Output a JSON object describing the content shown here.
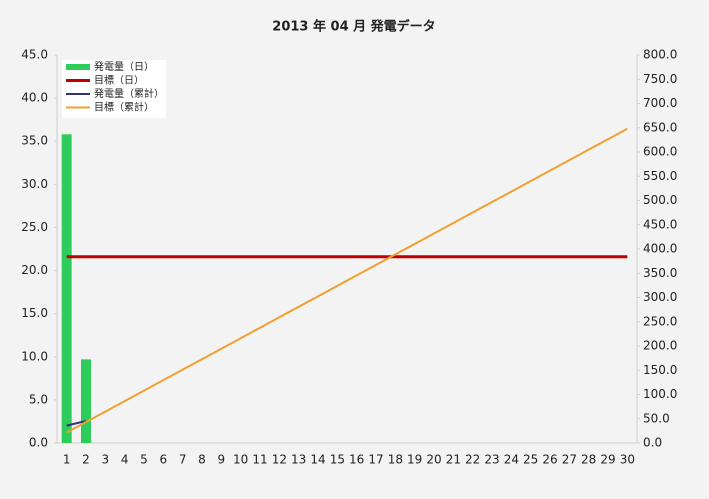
{
  "chart_data": {
    "type": "bar",
    "title": "2013 年 04 月 発電データ",
    "categories": [
      "1",
      "2",
      "3",
      "4",
      "5",
      "6",
      "7",
      "8",
      "9",
      "10",
      "11",
      "12",
      "13",
      "14",
      "15",
      "16",
      "17",
      "18",
      "19",
      "20",
      "21",
      "22",
      "23",
      "24",
      "25",
      "26",
      "27",
      "28",
      "29",
      "30"
    ],
    "series": [
      {
        "name": "発電量（日）",
        "type": "bar",
        "color": "#2ecc5a",
        "values": [
          35.8,
          9.7,
          null,
          null,
          null,
          null,
          null,
          null,
          null,
          null,
          null,
          null,
          null,
          null,
          null,
          null,
          null,
          null,
          null,
          null,
          null,
          null,
          null,
          null,
          null,
          null,
          null,
          null,
          null,
          null
        ]
      },
      {
        "name": "目標（日）",
        "type": "line",
        "color": "#c00000",
        "width": 3,
        "values": [
          21.6,
          21.6,
          21.6,
          21.6,
          21.6,
          21.6,
          21.6,
          21.6,
          21.6,
          21.6,
          21.6,
          21.6,
          21.6,
          21.6,
          21.6,
          21.6,
          21.6,
          21.6,
          21.6,
          21.6,
          21.6,
          21.6,
          21.6,
          21.6,
          21.6,
          21.6,
          21.6,
          21.6,
          21.6,
          21.6
        ]
      },
      {
        "name": "発電量（累計）",
        "type": "line",
        "axis": "y2",
        "color": "#33337a",
        "width": 2,
        "values": [
          35.8,
          45.5,
          null,
          null,
          null,
          null,
          null,
          null,
          null,
          null,
          null,
          null,
          null,
          null,
          null,
          null,
          null,
          null,
          null,
          null,
          null,
          null,
          null,
          null,
          null,
          null,
          null,
          null,
          null,
          null
        ]
      },
      {
        "name": "目標（累計）",
        "type": "line",
        "axis": "y2",
        "color": "#f0a030",
        "width": 2,
        "values": [
          21.6,
          43.2,
          64.8,
          86.4,
          108,
          129.6,
          151.2,
          172.8,
          194.4,
          216,
          237.6,
          259.2,
          280.8,
          302.4,
          324,
          345.6,
          367.2,
          388.8,
          410.4,
          432,
          453.6,
          475.2,
          496.8,
          518.4,
          540,
          561.6,
          583.2,
          604.8,
          626.4,
          648
        ]
      }
    ],
    "ylim": [
      0,
      45
    ],
    "yticks": [
      {
        "value": 0,
        "label": "0.0"
      },
      {
        "value": 5,
        "label": "5.0"
      },
      {
        "value": 10,
        "label": "10.0"
      },
      {
        "value": 15,
        "label": "15.0"
      },
      {
        "value": 20,
        "label": "20.0"
      },
      {
        "value": 25,
        "label": "25.0"
      },
      {
        "value": 30,
        "label": "30.0"
      },
      {
        "value": 35,
        "label": "35.0"
      },
      {
        "value": 40,
        "label": "40.0"
      },
      {
        "value": 45,
        "label": "45.0"
      }
    ],
    "y2lim": [
      0,
      800
    ],
    "y2ticks": [
      {
        "value": 0,
        "label": "0.0"
      },
      {
        "value": 50,
        "label": "50.0"
      },
      {
        "value": 100,
        "label": "100.0"
      },
      {
        "value": 150,
        "label": "150.0"
      },
      {
        "value": 200,
        "label": "200.0"
      },
      {
        "value": 250,
        "label": "250.0"
      },
      {
        "value": 300,
        "label": "300.0"
      },
      {
        "value": 350,
        "label": "350.0"
      },
      {
        "value": 400,
        "label": "400.0"
      },
      {
        "value": 450,
        "label": "450.0"
      },
      {
        "value": 500,
        "label": "500.0"
      },
      {
        "value": 550,
        "label": "550.0"
      },
      {
        "value": 600,
        "label": "600.0"
      },
      {
        "value": 650,
        "label": "650.0"
      },
      {
        "value": 700,
        "label": "700.0"
      },
      {
        "value": 750,
        "label": "750.0"
      },
      {
        "value": 800,
        "label": "800.0"
      }
    ],
    "legend": "top-left",
    "grid": false
  }
}
